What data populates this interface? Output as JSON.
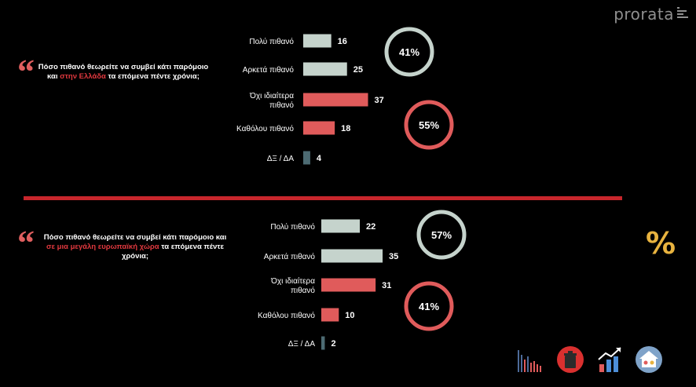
{
  "brand": {
    "logo_text": "prorata"
  },
  "colors": {
    "likely": "#c5d3cc",
    "unlikely": "#e05b5b",
    "dk": "#4d6b73",
    "accent_red": "#c8262c"
  },
  "questions": [
    {
      "text_parts": [
        "Πόσο πιθανό θεωρείτε να συμβεί κάτι παρόμοιο και ",
        "στην Ελλάδα",
        " τα επόμενα πέντε χρόνια;"
      ]
    },
    {
      "text_parts": [
        "Πόσο πιθανό θεωρείτε να συμβεί κάτι παρόμοιο και ",
        "σε μια μεγάλη ευρωπαϊκή χώρα",
        " τα επόμενα πέντε χρόνια;"
      ]
    }
  ],
  "chart_data": [
    {
      "type": "bar",
      "orientation": "horizontal",
      "categories": [
        "Πολύ πιθανό",
        "Αρκετά πιθανό",
        "Όχι ιδιαίτερα πιθανό",
        "Καθόλου πιθανό",
        "ΔΞ / ΔΑ"
      ],
      "values": [
        16,
        25,
        37,
        18,
        4
      ],
      "bar_colors": [
        "#c5d3cc",
        "#c5d3cc",
        "#e05b5b",
        "#e05b5b",
        "#4d6b73"
      ],
      "summaries": [
        {
          "label": "41%",
          "color": "#c5d3cc"
        },
        {
          "label": "55%",
          "color": "#e05b5b"
        }
      ]
    },
    {
      "type": "bar",
      "orientation": "horizontal",
      "categories": [
        "Πολύ πιθανό",
        "Αρκετά πιθανό",
        "Όχι ιδιαίτερα πιθανό",
        "Καθόλου πιθανό",
        "ΔΞ / ΔΑ"
      ],
      "values": [
        22,
        35,
        31,
        10,
        2
      ],
      "bar_colors": [
        "#c5d3cc",
        "#c5d3cc",
        "#e05b5b",
        "#e05b5b",
        "#4d6b73"
      ],
      "summaries": [
        {
          "label": "57%",
          "color": "#c5d3cc"
        },
        {
          "label": "41%",
          "color": "#e05b5b"
        }
      ]
    }
  ],
  "icons": [
    {
      "name": "bar-chart-icon"
    },
    {
      "name": "trash-bin-icon"
    },
    {
      "name": "growth-chart-icon"
    },
    {
      "name": "house-people-icon"
    },
    {
      "name": "percent-icon"
    }
  ]
}
